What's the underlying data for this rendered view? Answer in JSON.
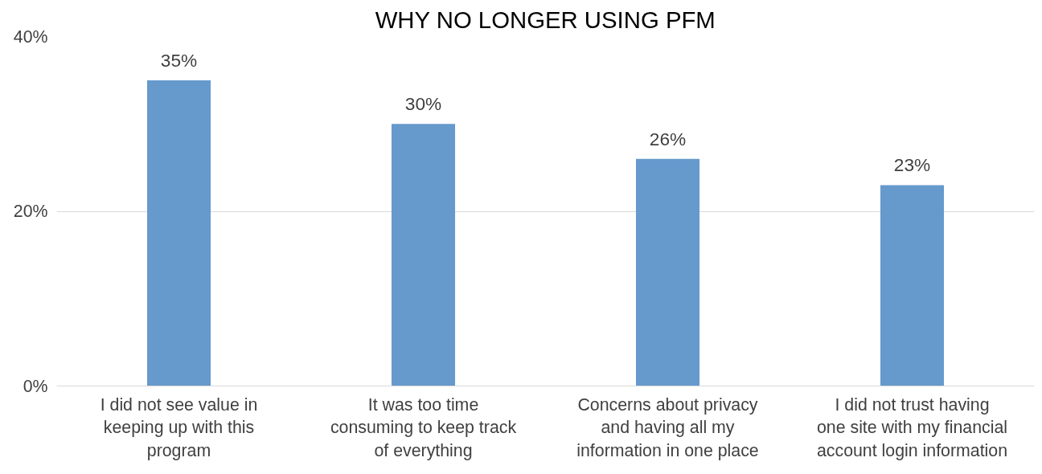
{
  "chart_data": {
    "type": "bar",
    "title": "WHY NO LONGER USING PFM",
    "categories": [
      "I did not see value in\nkeeping up with this\nprogram",
      "It was too time\nconsuming to keep track\nof everything",
      "Concerns about privacy\nand having all my\ninformation in one place",
      "I did not trust having\none site with my financial\naccount login information"
    ],
    "values": [
      35,
      30,
      26,
      23
    ],
    "value_labels": [
      "35%",
      "30%",
      "26%",
      "23%"
    ],
    "color": "#6699cc",
    "ylim": [
      0,
      40
    ],
    "yticks": [
      {
        "value": 0,
        "label": "0%"
      },
      {
        "value": 20,
        "label": "20%"
      },
      {
        "value": 40,
        "label": "40%"
      }
    ],
    "grid": "y"
  }
}
